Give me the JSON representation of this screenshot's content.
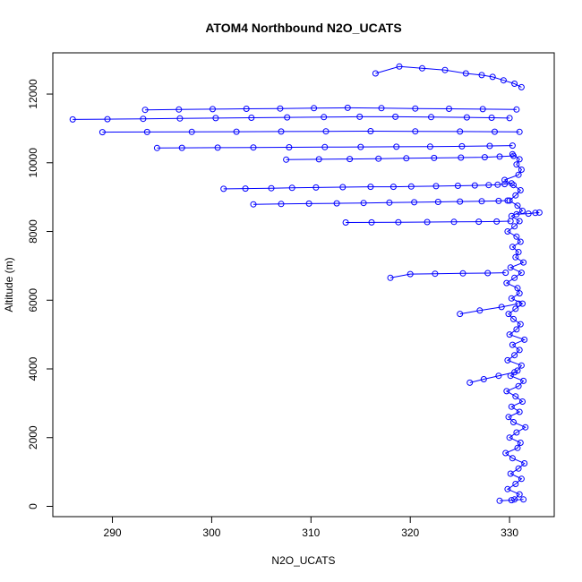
{
  "chart_data": {
    "type": "scatter",
    "title": "ATOM4 Northbound N2O_UCATS",
    "xlabel": "N2O_UCATS",
    "ylabel": "Altitude (m)",
    "xlim": [
      284.0,
      334.5
    ],
    "ylim": [
      -300,
      13200
    ],
    "xticks": [
      290,
      300,
      310,
      320,
      330
    ],
    "yticks": [
      0,
      2000,
      4000,
      6000,
      8000,
      10000,
      12000
    ],
    "grid": false,
    "legend": "none",
    "marker": "open-circle",
    "connected": true,
    "color": "#0000ff",
    "series": [
      {
        "x": [
          330.5,
          331.0,
          329.8,
          330.6,
          331.2,
          330.1,
          330.9,
          331.5,
          330.3,
          329.6,
          330.8,
          331.1,
          330.0,
          330.7,
          331.6,
          330.4,
          329.9,
          331.0,
          330.2,
          331.3,
          330.6,
          329.7,
          330.9,
          331.4,
          330.1,
          330.8,
          331.2,
          329.8,
          330.5,
          331.0,
          330.3,
          331.5,
          330.0,
          330.7,
          331.1,
          330.4,
          329.9,
          330.6,
          331.3,
          330.2,
          331.0,
          330.8,
          329.7,
          330.5,
          331.2,
          330.1,
          331.4,
          330.6,
          330.9,
          330.3,
          331.1,
          330.7,
          329.8,
          330.5,
          331.0,
          330.2,
          331.3,
          330.8,
          330.0,
          330.6,
          331.1,
          330.4,
          329.5,
          330.9,
          331.2,
          330.7,
          331.0,
          330.3
        ],
        "y": [
          200,
          350,
          500,
          650,
          800,
          950,
          1100,
          1250,
          1400,
          1550,
          1700,
          1850,
          2000,
          2150,
          2300,
          2450,
          2600,
          2750,
          2900,
          3050,
          3200,
          3350,
          3500,
          3650,
          3800,
          3950,
          4100,
          4250,
          4400,
          4550,
          4700,
          4850,
          5000,
          5150,
          5300,
          5450,
          5600,
          5750,
          5900,
          6050,
          6200,
          6350,
          6500,
          6650,
          6800,
          6950,
          7100,
          7250,
          7400,
          7550,
          7700,
          7850,
          8000,
          8150,
          8300,
          8450,
          8600,
          8750,
          8900,
          9050,
          9200,
          9350,
          9500,
          9650,
          9800,
          9950,
          10100,
          10250
        ]
      },
      {
        "x": [
          330.2,
          329.5,
          328.8,
          327.9,
          326.5,
          324.8,
          322.6,
          320.1,
          318.3,
          316.0,
          313.2,
          310.5,
          308.1,
          306.0,
          303.4,
          301.2
        ],
        "y": [
          9400,
          9380,
          9360,
          9350,
          9340,
          9330,
          9320,
          9310,
          9300,
          9300,
          9290,
          9280,
          9270,
          9260,
          9250,
          9240
        ]
      },
      {
        "x": [
          329.8,
          328.9,
          327.2,
          325.0,
          322.8,
          320.4,
          317.9,
          315.3,
          312.6,
          309.8,
          307.0,
          304.2
        ],
        "y": [
          8900,
          8890,
          8880,
          8870,
          8860,
          8850,
          8840,
          8830,
          8820,
          8810,
          8800,
          8790
        ]
      },
      {
        "x": [
          330.1,
          328.7,
          326.9,
          324.4,
          321.7,
          318.8,
          316.1,
          313.5
        ],
        "y": [
          8300,
          8290,
          8285,
          8280,
          8275,
          8270,
          8265,
          8260
        ]
      },
      {
        "x": [
          330.4,
          329.0,
          327.5,
          325.1,
          322.4,
          319.6,
          316.8,
          313.9,
          310.8,
          307.5
        ],
        "y": [
          10200,
          10180,
          10160,
          10150,
          10140,
          10130,
          10120,
          10110,
          10100,
          10090
        ]
      },
      {
        "x": [
          330.0,
          328.2,
          325.7,
          322.1,
          318.5,
          314.9,
          311.3,
          307.6,
          304.0,
          300.4,
          296.8,
          293.1,
          289.5,
          286.0
        ],
        "y": [
          11300,
          11310,
          11320,
          11330,
          11340,
          11340,
          11330,
          11320,
          11310,
          11300,
          11290,
          11280,
          11270,
          11260
        ]
      },
      {
        "x": [
          331.0,
          328.5,
          325.0,
          320.5,
          316.0,
          311.5,
          307.0,
          302.5,
          298.0,
          293.5,
          289.0
        ],
        "y": [
          10900,
          10905,
          10910,
          10915,
          10920,
          10915,
          10910,
          10905,
          10900,
          10895,
          10890
        ]
      },
      {
        "x": [
          330.7,
          327.3,
          323.9,
          320.5,
          317.1,
          313.7,
          310.3,
          306.9,
          303.5,
          300.1,
          296.7,
          293.3
        ],
        "y": [
          11550,
          11560,
          11570,
          11580,
          11590,
          11600,
          11590,
          11580,
          11570,
          11560,
          11550,
          11540
        ]
      },
      {
        "x": [
          330.3,
          328.0,
          325.2,
          322.0,
          318.6,
          315.0,
          311.4,
          307.8,
          304.2,
          300.6,
          297.0,
          294.5
        ],
        "y": [
          10500,
          10490,
          10480,
          10470,
          10465,
          10460,
          10455,
          10450,
          10445,
          10440,
          10435,
          10430
        ]
      },
      {
        "x": [
          331.2,
          330.5,
          329.4,
          328.3,
          327.2,
          325.6,
          323.5,
          321.2,
          318.9,
          316.5
        ],
        "y": [
          12200,
          12300,
          12400,
          12500,
          12550,
          12600,
          12700,
          12750,
          12800,
          12600
        ]
      },
      {
        "x": [
          329.6,
          327.8,
          325.3,
          322.5,
          320.0,
          318.0
        ],
        "y": [
          6800,
          6790,
          6780,
          6770,
          6760,
          6650
        ]
      },
      {
        "x": [
          330.9,
          329.2,
          327.0,
          325.0
        ],
        "y": [
          5900,
          5800,
          5700,
          5600
        ]
      },
      {
        "x": [
          330.5,
          328.9,
          327.4,
          326.0
        ],
        "y": [
          3900,
          3800,
          3700,
          3600
        ]
      },
      {
        "x": [
          331.4,
          330.2,
          329.0
        ],
        "y": [
          200,
          180,
          160
        ]
      },
      {
        "x": [
          330.7,
          331.9,
          332.6,
          333.0
        ],
        "y": [
          8500,
          8520,
          8540,
          8550
        ]
      }
    ]
  }
}
